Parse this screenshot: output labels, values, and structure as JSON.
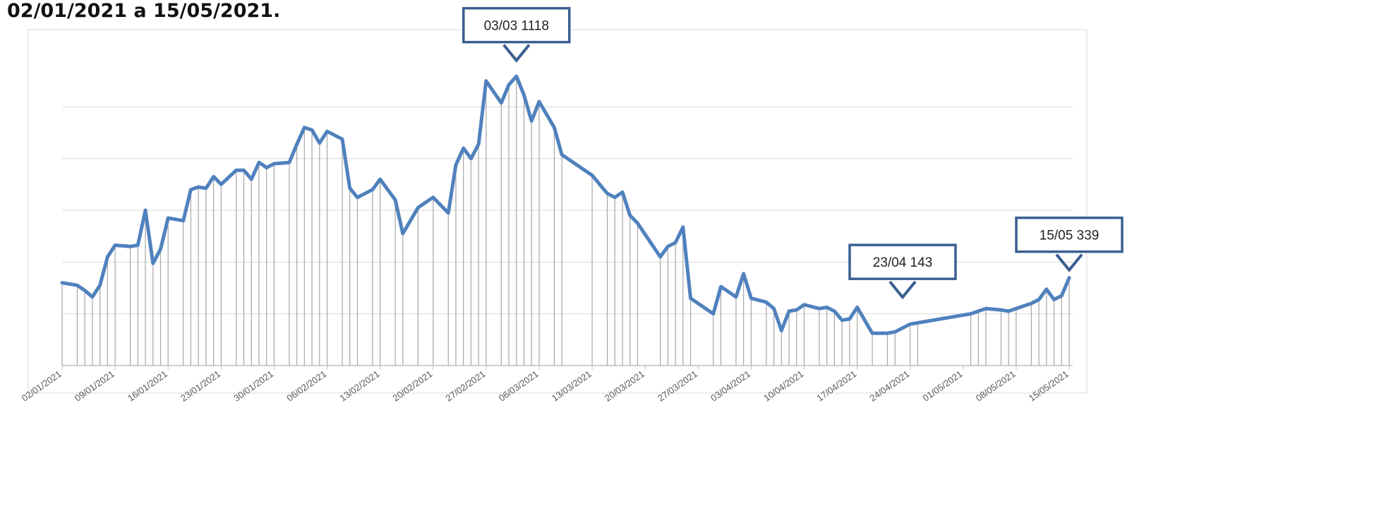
{
  "caption": "02/01/2021 a 15/05/2021.",
  "chart_data": {
    "type": "line",
    "title": "",
    "xlabel": "",
    "ylabel": "",
    "ylim": [
      0,
      1200
    ],
    "x_tick_labels": [
      "02/01/2021",
      "09/01/2021",
      "16/01/2021",
      "23/01/2021",
      "30/01/2021",
      "06/02/2021",
      "13/02/2021",
      "20/02/2021",
      "27/02/2021",
      "06/03/2021",
      "13/03/2021",
      "20/03/2021",
      "27/03/2021",
      "03/04/2021",
      "10/04/2021",
      "17/04/2021",
      "24/04/2021",
      "01/05/2021",
      "08/05/2021",
      "15/05/2021"
    ],
    "grid": "horizontal",
    "drop_lines": true,
    "series": [
      {
        "color": "#4F81BD",
        "points": [
          [
            "2021-01-02",
            320
          ],
          [
            "2021-01-04",
            310
          ],
          [
            "2021-01-05",
            290
          ],
          [
            "2021-01-06",
            265
          ],
          [
            "2021-01-07",
            310
          ],
          [
            "2021-01-08",
            420
          ],
          [
            "2021-01-09",
            465
          ],
          [
            "2021-01-11",
            460
          ],
          [
            "2021-01-12",
            465
          ],
          [
            "2021-01-13",
            600
          ],
          [
            "2021-01-14",
            395
          ],
          [
            "2021-01-15",
            450
          ],
          [
            "2021-01-16",
            570
          ],
          [
            "2021-01-18",
            560
          ],
          [
            "2021-01-19",
            680
          ],
          [
            "2021-01-20",
            690
          ],
          [
            "2021-01-21",
            685
          ],
          [
            "2021-01-22",
            730
          ],
          [
            "2021-01-23",
            700
          ],
          [
            "2021-01-25",
            755
          ],
          [
            "2021-01-26",
            755
          ],
          [
            "2021-01-27",
            720
          ],
          [
            "2021-01-28",
            785
          ],
          [
            "2021-01-29",
            765
          ],
          [
            "2021-01-30",
            780
          ],
          [
            "2021-02-01",
            785
          ],
          [
            "2021-02-02",
            855
          ],
          [
            "2021-02-03",
            920
          ],
          [
            "2021-02-04",
            910
          ],
          [
            "2021-02-05",
            860
          ],
          [
            "2021-02-06",
            905
          ],
          [
            "2021-02-08",
            875
          ],
          [
            "2021-02-09",
            685
          ],
          [
            "2021-02-10",
            650
          ],
          [
            "2021-02-12",
            680
          ],
          [
            "2021-02-13",
            720
          ],
          [
            "2021-02-15",
            640
          ],
          [
            "2021-02-16",
            510
          ],
          [
            "2021-02-18",
            610
          ],
          [
            "2021-02-20",
            650
          ],
          [
            "2021-02-22",
            590
          ],
          [
            "2021-02-23",
            775
          ],
          [
            "2021-02-24",
            840
          ],
          [
            "2021-02-25",
            800
          ],
          [
            "2021-02-26",
            855
          ],
          [
            "2021-02-27",
            1100
          ],
          [
            "2021-03-01",
            1015
          ],
          [
            "2021-03-02",
            1085
          ],
          [
            "2021-03-03",
            1118
          ],
          [
            "2021-03-04",
            1045
          ],
          [
            "2021-03-05",
            945
          ],
          [
            "2021-03-06",
            1020
          ],
          [
            "2021-03-08",
            920
          ],
          [
            "2021-03-09",
            815
          ],
          [
            "2021-03-13",
            735
          ],
          [
            "2021-03-15",
            665
          ],
          [
            "2021-03-16",
            650
          ],
          [
            "2021-03-17",
            670
          ],
          [
            "2021-03-18",
            580
          ],
          [
            "2021-03-19",
            550
          ],
          [
            "2021-03-22",
            420
          ],
          [
            "2021-03-23",
            460
          ],
          [
            "2021-03-24",
            475
          ],
          [
            "2021-03-25",
            535
          ],
          [
            "2021-03-26",
            260
          ],
          [
            "2021-03-29",
            200
          ],
          [
            "2021-03-30",
            305
          ],
          [
            "2021-04-01",
            265
          ],
          [
            "2021-04-02",
            355
          ],
          [
            "2021-04-03",
            260
          ],
          [
            "2021-04-05",
            245
          ],
          [
            "2021-04-06",
            220
          ],
          [
            "2021-04-07",
            135
          ],
          [
            "2021-04-08",
            210
          ],
          [
            "2021-04-09",
            215
          ],
          [
            "2021-04-10",
            235
          ],
          [
            "2021-04-12",
            220
          ],
          [
            "2021-04-13",
            225
          ],
          [
            "2021-04-14",
            210
          ],
          [
            "2021-04-15",
            175
          ],
          [
            "2021-04-16",
            180
          ],
          [
            "2021-04-17",
            225
          ],
          [
            "2021-04-19",
            125
          ],
          [
            "2021-04-21",
            125
          ],
          [
            "2021-04-22",
            130
          ],
          [
            "2021-04-24",
            160
          ],
          [
            "2021-04-25",
            165
          ],
          [
            "2021-05-02",
            200
          ],
          [
            "2021-05-03",
            210
          ],
          [
            "2021-05-04",
            220
          ],
          [
            "2021-05-06",
            215
          ],
          [
            "2021-05-07",
            210
          ],
          [
            "2021-05-08",
            220
          ],
          [
            "2021-05-10",
            240
          ],
          [
            "2021-05-11",
            255
          ],
          [
            "2021-05-12",
            295
          ],
          [
            "2021-05-13",
            255
          ],
          [
            "2021-05-14",
            270
          ],
          [
            "2021-05-15",
            339
          ]
        ]
      }
    ],
    "annotations": [
      {
        "date": "2021-03-03",
        "text": "03/03 1118",
        "box_value": 1250
      },
      {
        "date": "2021-04-23",
        "text": "23/04 143",
        "box_value": 335
      },
      {
        "date": "2021-05-15",
        "text": "15/05 339",
        "box_value": 440
      }
    ]
  }
}
